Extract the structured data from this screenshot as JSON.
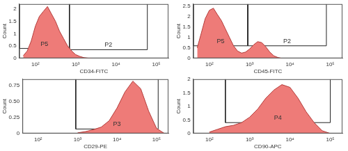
{
  "chart_data": [
    {
      "type": "area",
      "x_label": "CD34-FITC",
      "y_label": "Count",
      "color": "#ee7b78",
      "log": "x",
      "grid": false,
      "x": [
        50,
        63,
        79,
        100,
        126,
        158,
        200,
        251,
        316,
        398,
        501,
        631,
        794,
        1000,
        1259,
        1585,
        2000,
        2512
      ],
      "values": [
        0.1,
        0.3,
        0.7,
        1.3,
        1.7,
        1.9,
        2.1,
        1.8,
        1.5,
        1.1,
        0.8,
        0.5,
        0.3,
        0.15,
        0.08,
        0.03,
        0.01,
        0
      ],
      "xlim": [
        40,
        200000
      ],
      "xticks": [
        {
          "value": 100,
          "label": "10²"
        },
        {
          "value": 1000,
          "label": "10³"
        },
        {
          "value": 10000,
          "label": "10⁴"
        },
        {
          "value": 100000,
          "label": "10⁵"
        }
      ],
      "ylim": [
        0,
        2.2
      ],
      "yticks": [
        0,
        0.5,
        1,
        1.5,
        2
      ],
      "gates": [
        {
          "name": "P5",
          "range": [
            40,
            700
          ],
          "level": 0.4
        },
        {
          "name": "P2",
          "range": [
            700,
            60000
          ],
          "level": 0.35
        }
      ]
    },
    {
      "type": "area",
      "x_label": "CD45-FITC",
      "y_label": "Count",
      "color": "#ee7b78",
      "log": "x",
      "grid": false,
      "x": [
        50,
        63,
        79,
        100,
        126,
        158,
        200,
        251,
        316,
        398,
        501,
        631,
        794,
        1000,
        1259,
        1585,
        2000,
        2512,
        3162,
        3981,
        5012,
        6310
      ],
      "values": [
        0.5,
        1.2,
        1.9,
        2.3,
        2.4,
        2.1,
        1.8,
        1.4,
        1.0,
        0.6,
        0.35,
        0.25,
        0.3,
        0.45,
        0.65,
        0.8,
        0.75,
        0.55,
        0.3,
        0.12,
        0.04,
        0
      ],
      "xlim": [
        40,
        200000
      ],
      "xticks": [
        {
          "value": 100,
          "label": "10²"
        },
        {
          "value": 1000,
          "label": "10³"
        },
        {
          "value": 10000,
          "label": "10⁴"
        },
        {
          "value": 100000,
          "label": "10⁵"
        }
      ],
      "ylim": [
        0,
        2.6
      ],
      "yticks": [
        0,
        0.5,
        1,
        1.5,
        2,
        2.5
      ],
      "gates": [
        {
          "name": "P5",
          "range": [
            40,
            900
          ],
          "level": 0.6
        },
        {
          "name": "P2",
          "range": [
            900,
            80000
          ],
          "level": 0.6
        }
      ]
    },
    {
      "type": "area",
      "x_label": "CD29-PE",
      "y_label": "Count",
      "color": "#ee7b78",
      "log": "x",
      "grid": false,
      "x": [
        1000,
        1585,
        2512,
        3981,
        6310,
        10000,
        15849,
        25119,
        39811,
        63096,
        100000,
        158489
      ],
      "values": [
        0.01,
        0.03,
        0.06,
        0.1,
        0.2,
        0.4,
        0.65,
        0.82,
        0.7,
        0.35,
        0.08,
        0
      ],
      "xlim": [
        40,
        200000
      ],
      "xticks": [
        {
          "value": 100,
          "label": "10²"
        },
        {
          "value": 1000,
          "label": "10³"
        },
        {
          "value": 10000,
          "label": "10⁴"
        },
        {
          "value": 100000,
          "label": "10⁵"
        }
      ],
      "ylim": [
        0,
        0.85
      ],
      "yticks": [
        0,
        0.25,
        {
          "value": 0.5,
          "label": "0.50"
        },
        0.75
      ],
      "gates": [
        {
          "name": "P3",
          "range": [
            900,
            110000
          ],
          "level": 0.07
        }
      ]
    },
    {
      "type": "area",
      "x_label": "CD90-APC",
      "y_label": "Count",
      "color": "#ee7b78",
      "log": "x",
      "grid": false,
      "x": [
        100,
        158,
        251,
        398,
        631,
        1000,
        1585,
        2512,
        3981,
        6310,
        10000,
        15849,
        25119,
        39811,
        63096,
        100000
      ],
      "values": [
        0.05,
        0.15,
        0.25,
        0.3,
        0.4,
        0.6,
        0.9,
        1.3,
        1.6,
        1.8,
        1.7,
        1.3,
        0.8,
        0.4,
        0.1,
        0
      ],
      "xlim": [
        40,
        200000
      ],
      "xticks": [
        {
          "value": 100,
          "label": "10²"
        },
        {
          "value": 1000,
          "label": "10³"
        },
        {
          "value": 10000,
          "label": "10⁴"
        },
        {
          "value": 100000,
          "label": "10⁵"
        }
      ],
      "ylim": [
        0,
        2
      ],
      "yticks": [
        0,
        0.5,
        1,
        1.5,
        2
      ],
      "gates": [
        {
          "name": "P4",
          "range": [
            250,
            100000
          ],
          "level": 0.4
        }
      ]
    }
  ]
}
